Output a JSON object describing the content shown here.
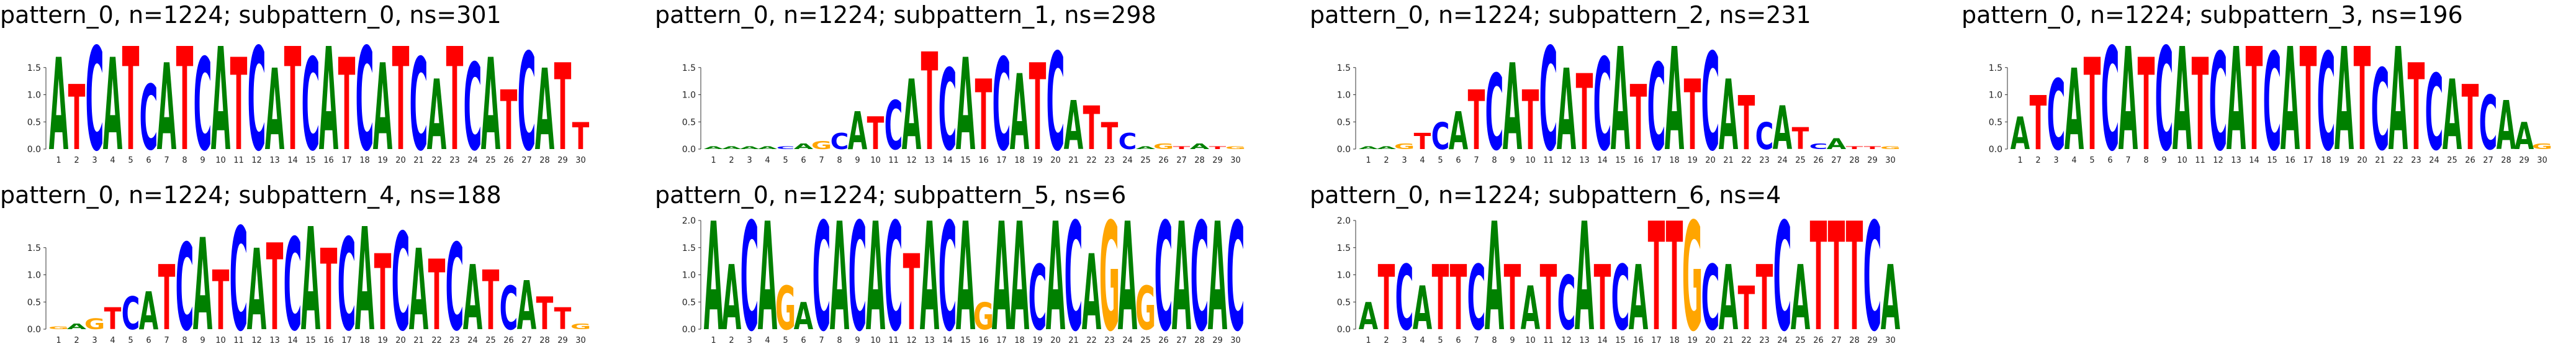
{
  "panels": [
    {
      "title": "pattern_0, n=1224; subpattern_0, ns=301",
      "y_ticks": [
        "0.0",
        "0.5",
        "1.0",
        "1.5"
      ],
      "y_max": 2.0,
      "n_positions": 30,
      "top_letters": "ATCATCATCATCATCATCATCATCATCATT",
      "heights": [
        1.7,
        1.2,
        1.9,
        1.7,
        1.9,
        1.2,
        1.6,
        1.9,
        1.7,
        1.9,
        1.7,
        1.9,
        1.5,
        1.9,
        1.7,
        1.9,
        1.7,
        1.9,
        1.6,
        1.9,
        1.7,
        1.3,
        1.9,
        1.6,
        1.7,
        1.1,
        1.8,
        1.5,
        1.6,
        0.5
      ]
    },
    {
      "title": "pattern_0, n=1224; subpattern_1, ns=298",
      "y_ticks": [
        "0.0",
        "0.5",
        "1.0",
        "1.5"
      ],
      "y_max": 2.0,
      "n_positions": 30,
      "top_letters": "AAAACAGCATCATCATCATCATTCAGTATG",
      "heights": [
        0.05,
        0.05,
        0.05,
        0.05,
        0.05,
        0.1,
        0.15,
        0.3,
        0.7,
        0.6,
        0.9,
        1.3,
        1.8,
        1.5,
        1.7,
        1.3,
        1.7,
        1.4,
        1.6,
        1.8,
        0.9,
        0.8,
        0.5,
        0.3,
        0.05,
        0.1,
        0.05,
        0.1,
        0.05,
        0.05
      ]
    },
    {
      "title": "pattern_0, n=1224; subpattern_2, ns=231",
      "y_ticks": [
        "0.0",
        "0.5",
        "1.0",
        "1.5"
      ],
      "y_max": 2.0,
      "n_positions": 30,
      "top_letters": "AAGTCATCATCATCATCATCATCATCATTG",
      "heights": [
        0.05,
        0.05,
        0.1,
        0.3,
        0.5,
        0.7,
        1.1,
        1.4,
        1.6,
        1.1,
        1.9,
        1.5,
        1.4,
        1.7,
        1.9,
        1.2,
        1.6,
        1.9,
        1.3,
        1.8,
        1.3,
        1.0,
        0.5,
        0.8,
        0.4,
        0.1,
        0.2,
        0.05,
        0.05,
        0.05
      ]
    },
    {
      "title": "pattern_0, n=1224; subpattern_3, ns=196",
      "y_ticks": [
        "0.0",
        "0.5",
        "1.0",
        "1.5"
      ],
      "y_max": 2.0,
      "n_positions": 30,
      "top_letters": "ATCATCATCATCATCATCATCATCATCAAG",
      "heights": [
        0.6,
        1.0,
        1.3,
        1.5,
        1.7,
        1.9,
        1.9,
        1.7,
        1.9,
        1.9,
        1.7,
        1.8,
        1.9,
        1.9,
        1.8,
        1.9,
        1.9,
        1.8,
        1.9,
        1.9,
        1.5,
        1.9,
        1.6,
        1.4,
        1.3,
        1.2,
        1.0,
        0.9,
        0.5,
        0.1
      ]
    },
    {
      "title": "pattern_0, n=1224; subpattern_4, ns=188",
      "y_ticks": [
        "0.0",
        "0.5",
        "1.0",
        "1.5"
      ],
      "y_max": 2.0,
      "n_positions": 30,
      "top_letters": "GAGTCATCATCATCATCATCATCATCATTG",
      "heights": [
        0.05,
        0.1,
        0.2,
        0.4,
        0.6,
        0.7,
        1.2,
        1.6,
        1.7,
        1.1,
        1.9,
        1.5,
        1.6,
        1.7,
        1.9,
        1.5,
        1.7,
        1.9,
        1.4,
        1.8,
        1.5,
        1.3,
        1.6,
        1.2,
        1.1,
        0.8,
        0.9,
        0.6,
        0.4,
        0.1
      ]
    },
    {
      "title": "pattern_0, n=1224; subpattern_5, ns=6",
      "y_ticks": [
        "0.0",
        "0.5",
        "1.0",
        "1.5",
        "2.0"
      ],
      "y_max": 2.0,
      "n_positions": 30,
      "top_letters": "AACAGACACACTACAGAACACAGAGCACAC",
      "heights": [
        2.0,
        1.2,
        2.0,
        2.0,
        0.8,
        0.5,
        2.0,
        2.0,
        2.0,
        2.0,
        2.0,
        1.4,
        2.0,
        2.0,
        2.0,
        0.5,
        2.0,
        2.0,
        1.2,
        2.0,
        2.0,
        1.4,
        2.0,
        2.0,
        0.8,
        2.0,
        2.0,
        2.0,
        2.0,
        2.0
      ]
    },
    {
      "title": "pattern_0, n=1224; subpattern_6, ns=4",
      "y_ticks": [
        "0.0",
        "0.5",
        "1.0",
        "1.5",
        "2.0"
      ],
      "y_max": 2.0,
      "n_positions": 30,
      "top_letters": "ATCATTCATATCATCATTGCATTCATTTCA",
      "heights": [
        0.5,
        1.2,
        1.2,
        0.8,
        1.2,
        1.2,
        1.2,
        2.0,
        1.2,
        0.8,
        1.2,
        1.0,
        2.0,
        1.2,
        1.2,
        1.2,
        2.0,
        2.0,
        2.0,
        1.2,
        1.2,
        0.8,
        1.2,
        2.0,
        1.2,
        2.0,
        2.0,
        2.0,
        2.0,
        1.2
      ]
    }
  ],
  "colors": {
    "A": "#008000",
    "C": "#0000ff",
    "G": "#ffa500",
    "T": "#ff0000"
  }
}
